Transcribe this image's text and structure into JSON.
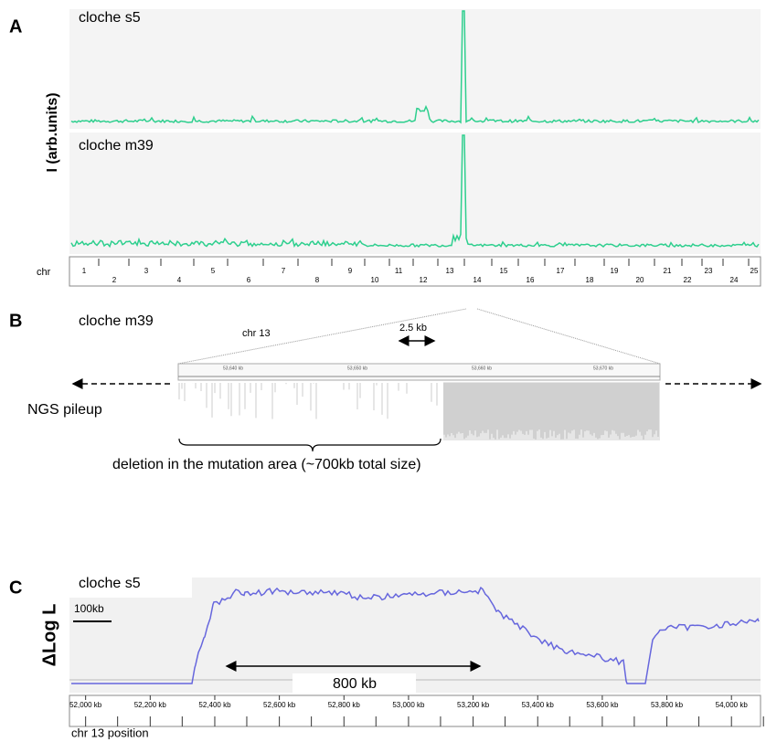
{
  "panel_a": {
    "label": "A",
    "y_label": "I (arb.units)",
    "tracks": [
      {
        "name": "cloche s5"
      },
      {
        "name": "cloche m39"
      }
    ],
    "chr_label": "chr",
    "chromosomes": [
      "1",
      "2",
      "3",
      "4",
      "5",
      "6",
      "7",
      "8",
      "9",
      "10",
      "11",
      "12",
      "13",
      "14",
      "15",
      "16",
      "17",
      "18",
      "19",
      "20",
      "21",
      "22",
      "23",
      "24",
      "25"
    ]
  },
  "panel_b": {
    "label": "B",
    "sample": "cloche m39",
    "chr": "chr 13",
    "scale": "2.5 kb",
    "pileup_label": "NGS pileup",
    "deletion_note": "deletion in the mutation area (~700kb total size)",
    "ruler_ticks": [
      "53,640 kb",
      "53,650 kb",
      "53,660 kb",
      "53,670 kb"
    ]
  },
  "panel_c": {
    "label": "C",
    "sample": "cloche s5",
    "y_label": "ΔLog L",
    "scale": "100kb",
    "span": "800 kb",
    "x_label": "chr 13 position",
    "xlim": [
      51950,
      54090
    ],
    "xticks": [
      {
        "value": 52000,
        "label": "52,000 kb"
      },
      {
        "value": 52200,
        "label": "52,200 kb"
      },
      {
        "value": 52400,
        "label": "52,400 kb"
      },
      {
        "value": 52600,
        "label": "52,600 kb"
      },
      {
        "value": 52800,
        "label": "52,800 kb"
      },
      {
        "value": 53000,
        "label": "53,000 kb"
      },
      {
        "value": 53200,
        "label": "53,200 kb"
      },
      {
        "value": 53400,
        "label": "53,400 kb"
      },
      {
        "value": 53600,
        "label": "53,600 kb"
      },
      {
        "value": 53800,
        "label": "53,800 kb"
      },
      {
        "value": 54000,
        "label": "54,000 kb"
      }
    ]
  }
}
